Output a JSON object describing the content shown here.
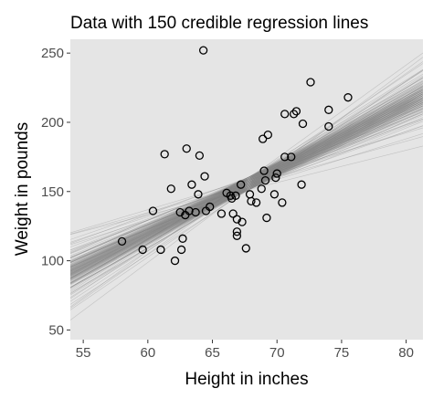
{
  "chart_data": {
    "type": "scatter",
    "title": "Data with 150 credible regression lines",
    "xlabel": "Height in inches",
    "ylabel": "Weight in pounds",
    "xlim": [
      54.0,
      81.3
    ],
    "ylim": [
      43.0,
      260.0
    ],
    "x_ticks": [
      55,
      60,
      65,
      70,
      75,
      80
    ],
    "y_ticks": [
      50,
      100,
      150,
      200,
      250
    ],
    "grid": false,
    "panel_background": "#e5e5e5",
    "line_color": "#808080",
    "point_stroke": "#000000",
    "regression_lines": {
      "count": 150,
      "center": {
        "x": 67.8,
        "y": 155.8
      },
      "slope_mean": 4.65,
      "slope_min": 2.2,
      "slope_max": 7.1
    },
    "series": [
      {
        "x": [
          58.0,
          59.6,
          60.4,
          61.0,
          61.3,
          61.8,
          62.1,
          62.5,
          62.6,
          62.7,
          62.9,
          63.0,
          63.2,
          63.4,
          63.7,
          63.9,
          64.0,
          64.3,
          64.4,
          64.5,
          64.8,
          65.7,
          66.1,
          66.4,
          66.5,
          66.6,
          66.8,
          66.9,
          66.9,
          66.9,
          67.2,
          67.3,
          67.6,
          67.9,
          68.0,
          68.4,
          68.8,
          68.9,
          69.0,
          69.1,
          69.2,
          69.3,
          69.8,
          69.9,
          70.0,
          70.4,
          70.6,
          70.6,
          71.1,
          71.3,
          71.5,
          71.9,
          72.0,
          72.6,
          74.0,
          74.0,
          75.5
        ],
        "y": [
          114,
          108,
          136,
          108,
          177,
          152,
          100,
          135,
          108,
          116,
          133,
          181,
          136,
          155,
          135,
          148,
          176,
          252,
          161,
          136,
          139,
          134,
          149,
          147,
          145,
          134,
          147,
          121,
          118,
          130,
          155,
          128,
          109,
          148,
          143,
          142,
          152,
          188,
          165,
          158,
          131,
          191,
          148,
          160,
          163,
          142,
          206,
          175,
          175,
          206,
          208,
          155,
          199,
          229,
          197,
          209,
          218
        ]
      }
    ]
  }
}
